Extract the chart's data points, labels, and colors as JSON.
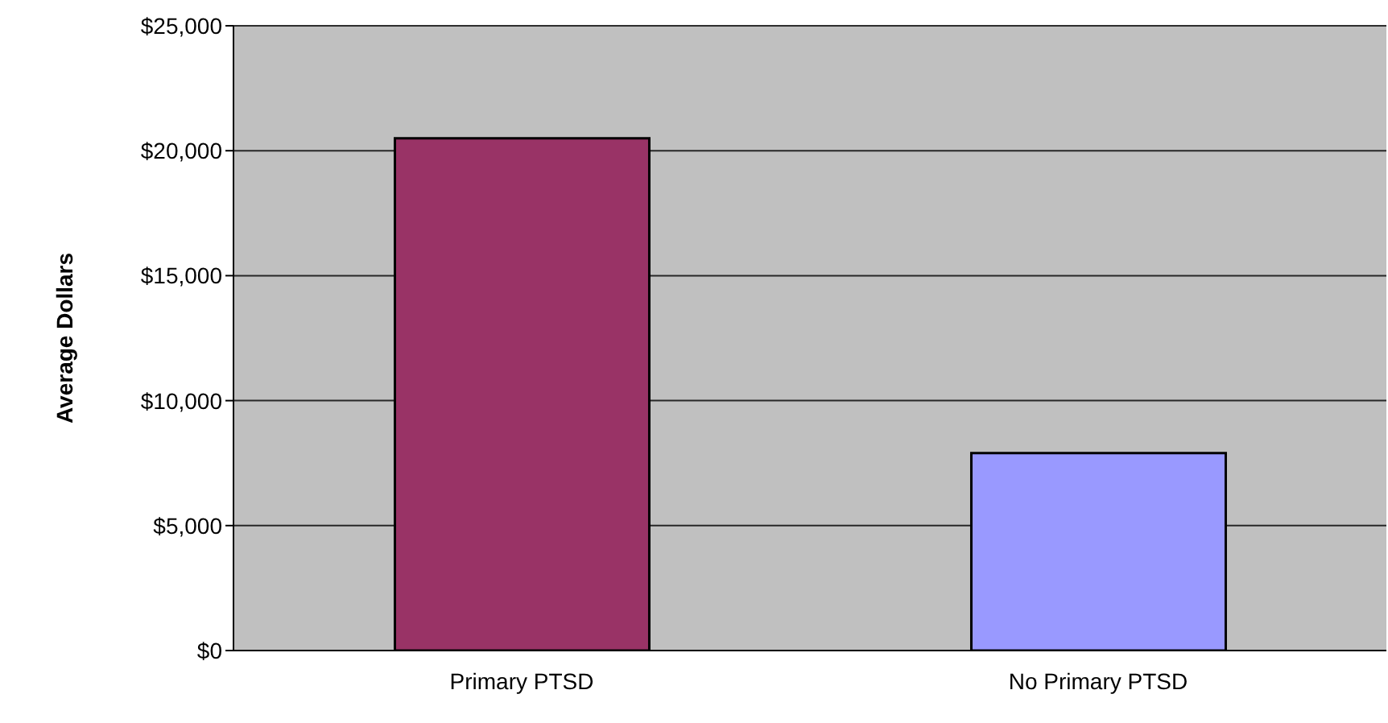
{
  "chart_data": {
    "type": "bar",
    "ylabel": "Average Dollars",
    "categories": [
      "Primary PTSD",
      "No Primary PTSD"
    ],
    "values": [
      20500,
      7900
    ],
    "colors": [
      "#993366",
      "#9999ff"
    ],
    "ylim": [
      0,
      25000
    ],
    "yticks": [
      {
        "value": 0,
        "label": "$0"
      },
      {
        "value": 5000,
        "label": "$5,000"
      },
      {
        "value": 10000,
        "label": "$10,000"
      },
      {
        "value": 15000,
        "label": "$15,000"
      },
      {
        "value": 20000,
        "label": "$20,000"
      },
      {
        "value": 25000,
        "label": "$25,000"
      }
    ],
    "grid": "y"
  }
}
